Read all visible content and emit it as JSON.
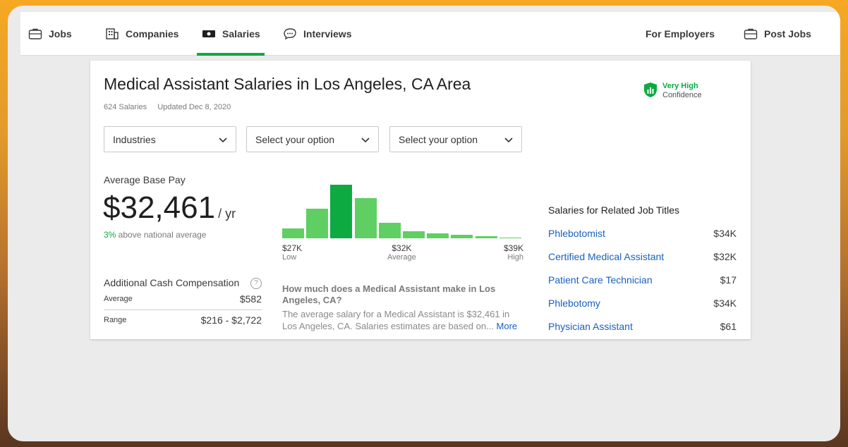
{
  "nav": {
    "jobs": "Jobs",
    "companies": "Companies",
    "salaries": "Salaries",
    "interviews": "Interviews",
    "for_employers": "For Employers",
    "post_jobs": "Post Jobs"
  },
  "header": {
    "title": "Medical Assistant Salaries in Los Angeles, CA Area",
    "count": "624 Salaries",
    "updated": "Updated Dec 8, 2020",
    "confidence_level": "Very High",
    "confidence_label": "Confidence"
  },
  "filters": [
    "Industries",
    "Select your option",
    "Select your option"
  ],
  "pay": {
    "label": "Average Base Pay",
    "amount": "$32,461",
    "period": "/ yr",
    "above_pct": "3%",
    "above_text": " above national average"
  },
  "cash": {
    "title": "Additional Cash Compensation",
    "help": "?",
    "average_label": "Average",
    "average_value": "$582",
    "range_label": "Range",
    "range_value": "$216 - $2,722"
  },
  "chart_data": {
    "type": "bar",
    "values": [
      14,
      41,
      75,
      56,
      22,
      10,
      7,
      5,
      3,
      1
    ],
    "peak_index": 2,
    "axis": {
      "low": "$27K",
      "low_sub": "Low",
      "mid": "$32K",
      "mid_sub": "Average",
      "high": "$39K",
      "high_sub": "High"
    }
  },
  "faq": {
    "question": "How much does a Medical Assistant make in Los Angeles, CA?",
    "answer": "The average salary for a Medical Assistant is $32,461 in Los Angeles, CA. Salaries estimates are based on...",
    "more": "More"
  },
  "related": {
    "title": "Salaries for Related Job Titles",
    "items": [
      {
        "title": "Phlebotomist",
        "salary": "$34K"
      },
      {
        "title": "Certified Medical Assistant",
        "salary": "$32K"
      },
      {
        "title": "Patient Care Technician",
        "salary": "$17"
      },
      {
        "title": "Phlebotomy",
        "salary": "$34K"
      },
      {
        "title": "Physician Assistant",
        "salary": "$61"
      }
    ]
  },
  "colors": {
    "brand_green": "#0caa41",
    "bar_green": "#5fcf63",
    "link_blue": "#1861bf"
  },
  "icons": {
    "jobs": "briefcase-icon",
    "companies": "building-icon",
    "salaries": "money-icon",
    "interviews": "chat-bubble-icon",
    "post_jobs": "briefcase-icon",
    "confidence": "shield-chart-icon"
  }
}
